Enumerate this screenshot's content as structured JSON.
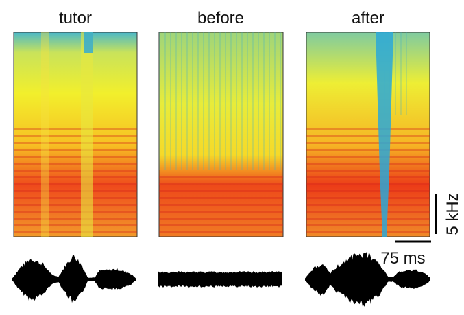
{
  "panels": [
    {
      "title": "tutor"
    },
    {
      "title": "before"
    },
    {
      "title": "after"
    }
  ],
  "scale": {
    "frequency": "5 kHz",
    "time": "75 ms"
  }
}
